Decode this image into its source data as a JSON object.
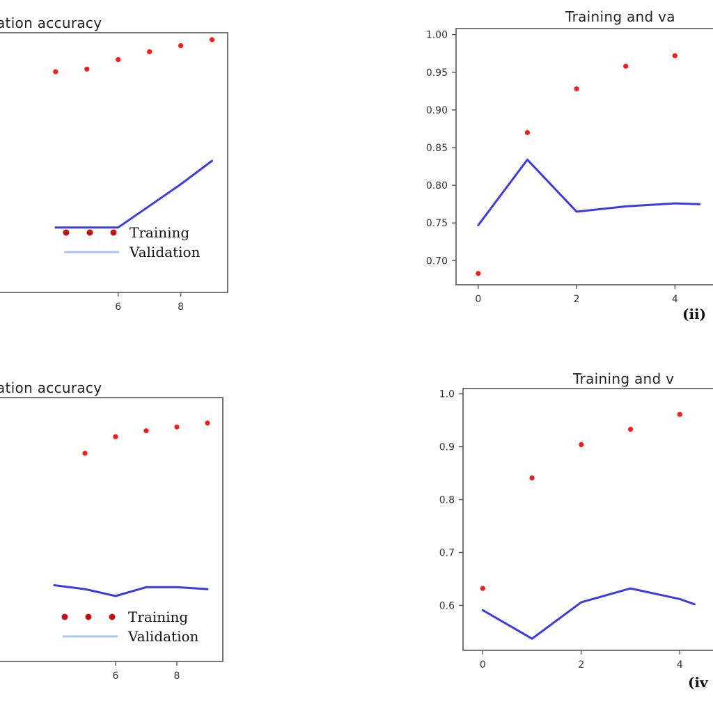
{
  "chart_data": [
    {
      "type": "line",
      "panel_label": "",
      "title": "ation accuracy",
      "x_ticks": [
        "6",
        "8"
      ],
      "y_ticks": [],
      "series": [
        {
          "name": "Training",
          "style": "dots",
          "color": "#ff1a1a",
          "x": [
            4,
            5,
            6,
            7,
            8,
            9
          ],
          "y": [
            0.955,
            0.958,
            0.969,
            0.978,
            0.985,
            0.992
          ]
        },
        {
          "name": "Validation",
          "style": "line",
          "color": "#3a3ae8",
          "x": [
            4,
            5,
            6,
            7,
            8,
            9
          ],
          "y": [
            0.775,
            0.775,
            0.775,
            0.8,
            0.825,
            0.852
          ]
        }
      ],
      "legend": {
        "entries": [
          "Training",
          "Validation"
        ],
        "position": "lower-right"
      }
    },
    {
      "type": "line",
      "panel_label": "(ii)",
      "title": "Training and va",
      "x_ticks": [
        "0",
        "2",
        "4"
      ],
      "y_ticks": [
        "1.00",
        "0.95",
        "0.90",
        "0.85",
        "0.80",
        "0.75",
        "0.70"
      ],
      "series": [
        {
          "name": "Training",
          "style": "dots",
          "color": "#ff1a1a",
          "x": [
            0,
            1,
            2,
            3,
            4
          ],
          "y": [
            0.683,
            0.87,
            0.928,
            0.958,
            0.972
          ]
        },
        {
          "name": "Validation",
          "style": "line",
          "color": "#3a3ae8",
          "x": [
            0,
            1,
            2,
            3,
            4,
            4.5
          ],
          "y": [
            0.747,
            0.834,
            0.765,
            0.772,
            0.776,
            0.775
          ]
        }
      ],
      "legend": null
    },
    {
      "type": "line",
      "panel_label": "",
      "title": "ation accuracy",
      "x_ticks": [
        "6",
        "8"
      ],
      "y_ticks": [],
      "series": [
        {
          "name": "Training",
          "style": "dots",
          "color": "#ff1a1a",
          "x": [
            5,
            6,
            7,
            8,
            9
          ],
          "y": [
            0.943,
            0.96,
            0.966,
            0.97,
            0.974
          ]
        },
        {
          "name": "Validation",
          "style": "line",
          "color": "#3a3ae8",
          "x": [
            4,
            5,
            6,
            7,
            8,
            9
          ],
          "y": [
            0.808,
            0.804,
            0.797,
            0.806,
            0.806,
            0.804
          ]
        }
      ],
      "legend": {
        "entries": [
          "Training",
          "Validation"
        ],
        "position": "lower-right"
      }
    },
    {
      "type": "line",
      "panel_label": "(iv",
      "title": "Training and v",
      "x_ticks": [
        "0",
        "2",
        "4"
      ],
      "y_ticks": [
        "1.0",
        "0.9",
        "0.8",
        "0.7",
        "0.6"
      ],
      "series": [
        {
          "name": "Training",
          "style": "dots",
          "color": "#ff1a1a",
          "x": [
            0,
            1,
            2,
            3,
            4
          ],
          "y": [
            0.632,
            0.841,
            0.904,
            0.933,
            0.961
          ]
        },
        {
          "name": "Validation",
          "style": "line",
          "color": "#3a3ae8",
          "x": [
            0,
            1,
            2,
            3,
            4,
            4.3
          ],
          "y": [
            0.591,
            0.537,
            0.606,
            0.632,
            0.612,
            0.602
          ]
        }
      ],
      "legend": null
    }
  ]
}
